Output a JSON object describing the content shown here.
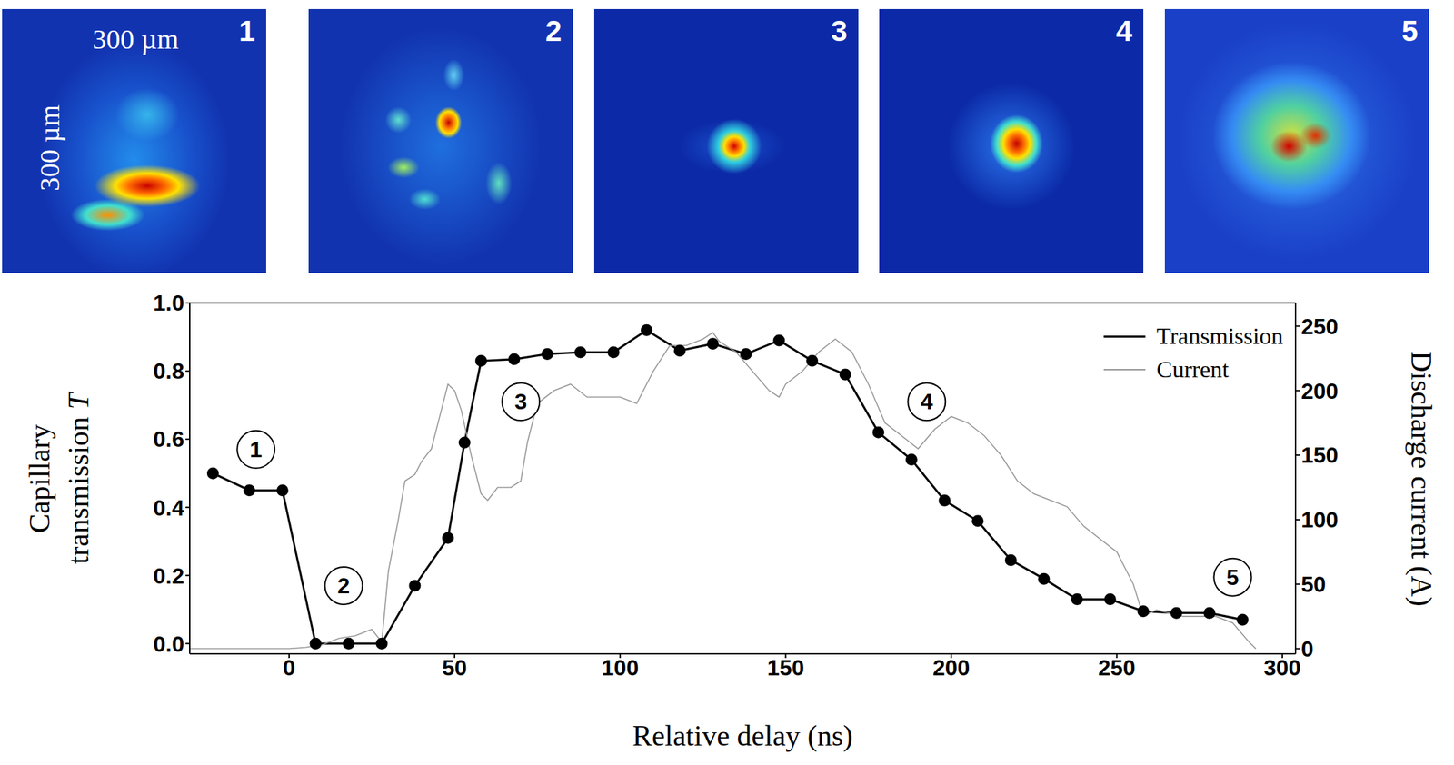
{
  "chart_data": {
    "type": "line",
    "xlabel": "Relative delay (ns)",
    "ylabel": "Capillary transmission T",
    "y2label": "Discharge current (A)",
    "xlim": [
      -30,
      304
    ],
    "xticks": [
      0,
      50,
      100,
      150,
      200,
      250,
      300
    ],
    "ylim": [
      -0.03,
      1.0
    ],
    "yticks": [
      {
        "value": 0,
        "label": "0.0"
      },
      {
        "value": 0.2,
        "label": "0.2"
      },
      {
        "value": 0.4,
        "label": "0.4"
      },
      {
        "value": 0.6,
        "label": "0.6"
      },
      {
        "value": 0.8,
        "label": "0.8"
      },
      {
        "value": 1.0,
        "label": "1.0"
      }
    ],
    "y2lim": [
      -4,
      268
    ],
    "y2ticks": [
      0,
      50,
      100,
      150,
      200,
      250
    ],
    "legend": "upper right",
    "grid": false,
    "series": [
      {
        "name": "Transmission",
        "color": "#000000",
        "marker": "circle",
        "x": [
          -23,
          -12,
          -2,
          8,
          18,
          28,
          38,
          48,
          53,
          58,
          68,
          78,
          88,
          98,
          108,
          118,
          128,
          138,
          148,
          158,
          168,
          178,
          188,
          198,
          208,
          218,
          228,
          238,
          248,
          258,
          268,
          278,
          288
        ],
        "values": [
          0.5,
          0.45,
          0.45,
          0,
          0,
          0,
          0.17,
          0.31,
          0.59,
          0.83,
          0.835,
          0.85,
          0.855,
          0.855,
          0.92,
          0.86,
          0.88,
          0.85,
          0.89,
          0.83,
          0.79,
          0.62,
          0.54,
          0.42,
          0.36,
          0.245,
          0.19,
          0.13,
          0.13,
          0.095,
          0.09,
          0.09,
          0.07
        ]
      },
      {
        "name": "Current",
        "color": "#999999",
        "axis": "y2",
        "x": [
          -30,
          -20,
          -10,
          0,
          5,
          10,
          15,
          20,
          25,
          28,
          30,
          33,
          35,
          38,
          40,
          43,
          45,
          48,
          50,
          52,
          55,
          58,
          60,
          63,
          67,
          70,
          72,
          75,
          80,
          85,
          90,
          95,
          100,
          105,
          110,
          115,
          120,
          125,
          128,
          130,
          135,
          140,
          145,
          148,
          150,
          155,
          160,
          165,
          170,
          175,
          180,
          185,
          190,
          195,
          200,
          205,
          210,
          215,
          220,
          225,
          230,
          235,
          240,
          245,
          250,
          255,
          258,
          262,
          270,
          280,
          285,
          290,
          292
        ],
        "values": [
          0,
          0,
          0,
          0,
          1,
          3,
          8,
          10,
          15,
          5,
          60,
          100,
          130,
          135,
          145,
          155,
          175,
          205,
          200,
          185,
          150,
          120,
          115,
          125,
          125,
          130,
          160,
          190,
          200,
          205,
          195,
          195,
          195,
          190,
          215,
          235,
          235,
          240,
          245,
          238,
          230,
          215,
          200,
          195,
          205,
          215,
          230,
          240,
          230,
          205,
          175,
          165,
          155,
          170,
          180,
          175,
          165,
          150,
          130,
          120,
          115,
          110,
          95,
          85,
          75,
          50,
          25,
          30,
          25,
          25,
          20,
          5,
          0
        ]
      }
    ],
    "annotations": [
      {
        "text": "1",
        "x": -10,
        "y": 0.57
      },
      {
        "text": "2",
        "x": 16.5,
        "y": 0.17
      },
      {
        "text": "3",
        "x": 70,
        "y": 0.71
      },
      {
        "text": "4",
        "x": 192.6,
        "y": 0.71
      },
      {
        "text": "5",
        "x": 285,
        "y": 0.195
      }
    ]
  },
  "images": {
    "labels": [
      "1",
      "2",
      "3",
      "4",
      "5"
    ],
    "scale_horizontal": "300 µm",
    "scale_vertical": "300 µm"
  }
}
